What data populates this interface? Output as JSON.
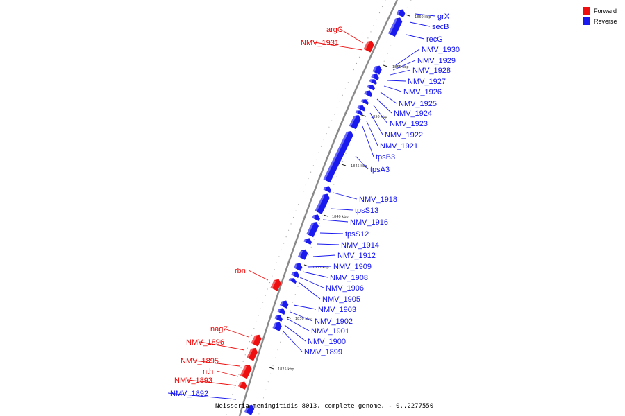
{
  "legend": {
    "forward_label": "Forward",
    "reverse_label": "Reverse",
    "forward_color": "#ee1010",
    "reverse_color": "#1a1aee"
  },
  "caption": "Neisseria meningitidis 8013, complete genome. - 0..2277550",
  "ticks": [
    {
      "kbp": 1825,
      "label": "1825 kbp"
    },
    {
      "kbp": 1830,
      "label": "1830 kbp"
    },
    {
      "kbp": 1835,
      "label": "1835 kbp"
    },
    {
      "kbp": 1840,
      "label": "1840 kbp"
    },
    {
      "kbp": 1845,
      "label": "1845 kbp"
    },
    {
      "kbp": 1850,
      "label": "1850 kbp"
    },
    {
      "kbp": 1855,
      "label": "1855 kbp"
    },
    {
      "kbp": 1860,
      "label": "1860 kbp"
    }
  ],
  "genes": [
    {
      "name": "grX",
      "strand": "reverse"
    },
    {
      "name": "secB",
      "strand": "reverse"
    },
    {
      "name": "recG",
      "strand": "reverse"
    },
    {
      "name": "argC",
      "strand": "forward"
    },
    {
      "name": "NMV_1931",
      "strand": "forward"
    },
    {
      "name": "NMV_1930",
      "strand": "reverse"
    },
    {
      "name": "NMV_1929",
      "strand": "reverse"
    },
    {
      "name": "NMV_1928",
      "strand": "reverse"
    },
    {
      "name": "NMV_1927",
      "strand": "reverse"
    },
    {
      "name": "NMV_1926",
      "strand": "reverse"
    },
    {
      "name": "NMV_1925",
      "strand": "reverse"
    },
    {
      "name": "NMV_1924",
      "strand": "reverse"
    },
    {
      "name": "NMV_1923",
      "strand": "reverse"
    },
    {
      "name": "NMV_1922",
      "strand": "reverse"
    },
    {
      "name": "NMV_1921",
      "strand": "reverse"
    },
    {
      "name": "tpsB3",
      "strand": "reverse"
    },
    {
      "name": "tpsA3",
      "strand": "reverse"
    },
    {
      "name": "NMV_1918",
      "strand": "reverse"
    },
    {
      "name": "tpsS13",
      "strand": "reverse"
    },
    {
      "name": "NMV_1916",
      "strand": "reverse"
    },
    {
      "name": "tpsS12",
      "strand": "reverse"
    },
    {
      "name": "NMV_1914",
      "strand": "reverse"
    },
    {
      "name": "NMV_1912",
      "strand": "reverse"
    },
    {
      "name": "NMV_1909",
      "strand": "reverse"
    },
    {
      "name": "NMV_1908",
      "strand": "reverse"
    },
    {
      "name": "NMV_1906",
      "strand": "reverse"
    },
    {
      "name": "NMV_1905",
      "strand": "reverse"
    },
    {
      "name": "NMV_1903",
      "strand": "reverse"
    },
    {
      "name": "NMV_1902",
      "strand": "reverse"
    },
    {
      "name": "NMV_1901",
      "strand": "reverse"
    },
    {
      "name": "NMV_1900",
      "strand": "reverse"
    },
    {
      "name": "NMV_1899",
      "strand": "reverse"
    },
    {
      "name": "rbn",
      "strand": "forward"
    },
    {
      "name": "nagZ",
      "strand": "forward"
    },
    {
      "name": "NMV_1896",
      "strand": "forward"
    },
    {
      "name": "NMV_1895",
      "strand": "forward"
    },
    {
      "name": "nth",
      "strand": "forward"
    },
    {
      "name": "NMV_1893",
      "strand": "forward"
    },
    {
      "name": "NMV_1892",
      "strand": "reverse"
    }
  ]
}
